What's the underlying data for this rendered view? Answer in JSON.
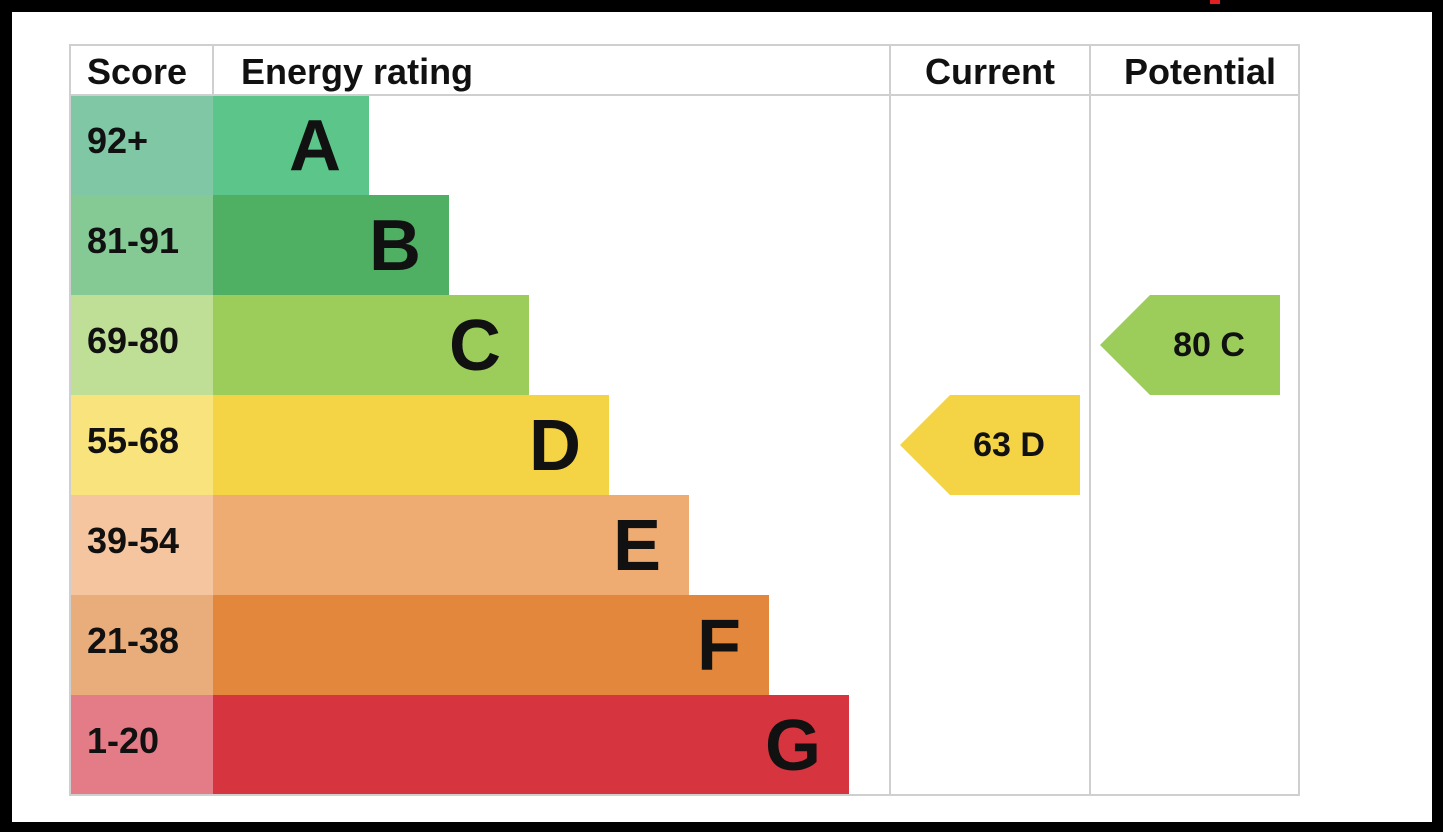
{
  "chart_data": {
    "type": "bar",
    "columns": {
      "score": "Score",
      "rating": "Energy rating",
      "current": "Current",
      "potential": "Potential"
    },
    "bands": [
      {
        "score": "92+",
        "letter": "A",
        "band_color": "#5bc58a",
        "score_color": "#80c7a5"
      },
      {
        "score": "81-91",
        "letter": "B",
        "band_color": "#4faf63",
        "score_color": "#85c994"
      },
      {
        "score": "69-80",
        "letter": "C",
        "band_color": "#9ccc5a",
        "score_color": "#bfdf97"
      },
      {
        "score": "55-68",
        "letter": "D",
        "band_color": "#f4d344",
        "score_color": "#f9e37c"
      },
      {
        "score": "39-54",
        "letter": "E",
        "band_color": "#efac72",
        "score_color": "#f4c59f"
      },
      {
        "score": "21-38",
        "letter": "F",
        "band_color": "#e2873c",
        "score_color": "#e9ad7b"
      },
      {
        "score": "1-20",
        "letter": "G",
        "band_color": "#d6343f",
        "score_color": "#e37c87"
      }
    ],
    "current": {
      "value": 63,
      "letter": "D",
      "color": "#f4d344",
      "text": "63  D"
    },
    "potential": {
      "value": 80,
      "letter": "C",
      "color": "#9ccc5a",
      "text": "80  C"
    }
  }
}
